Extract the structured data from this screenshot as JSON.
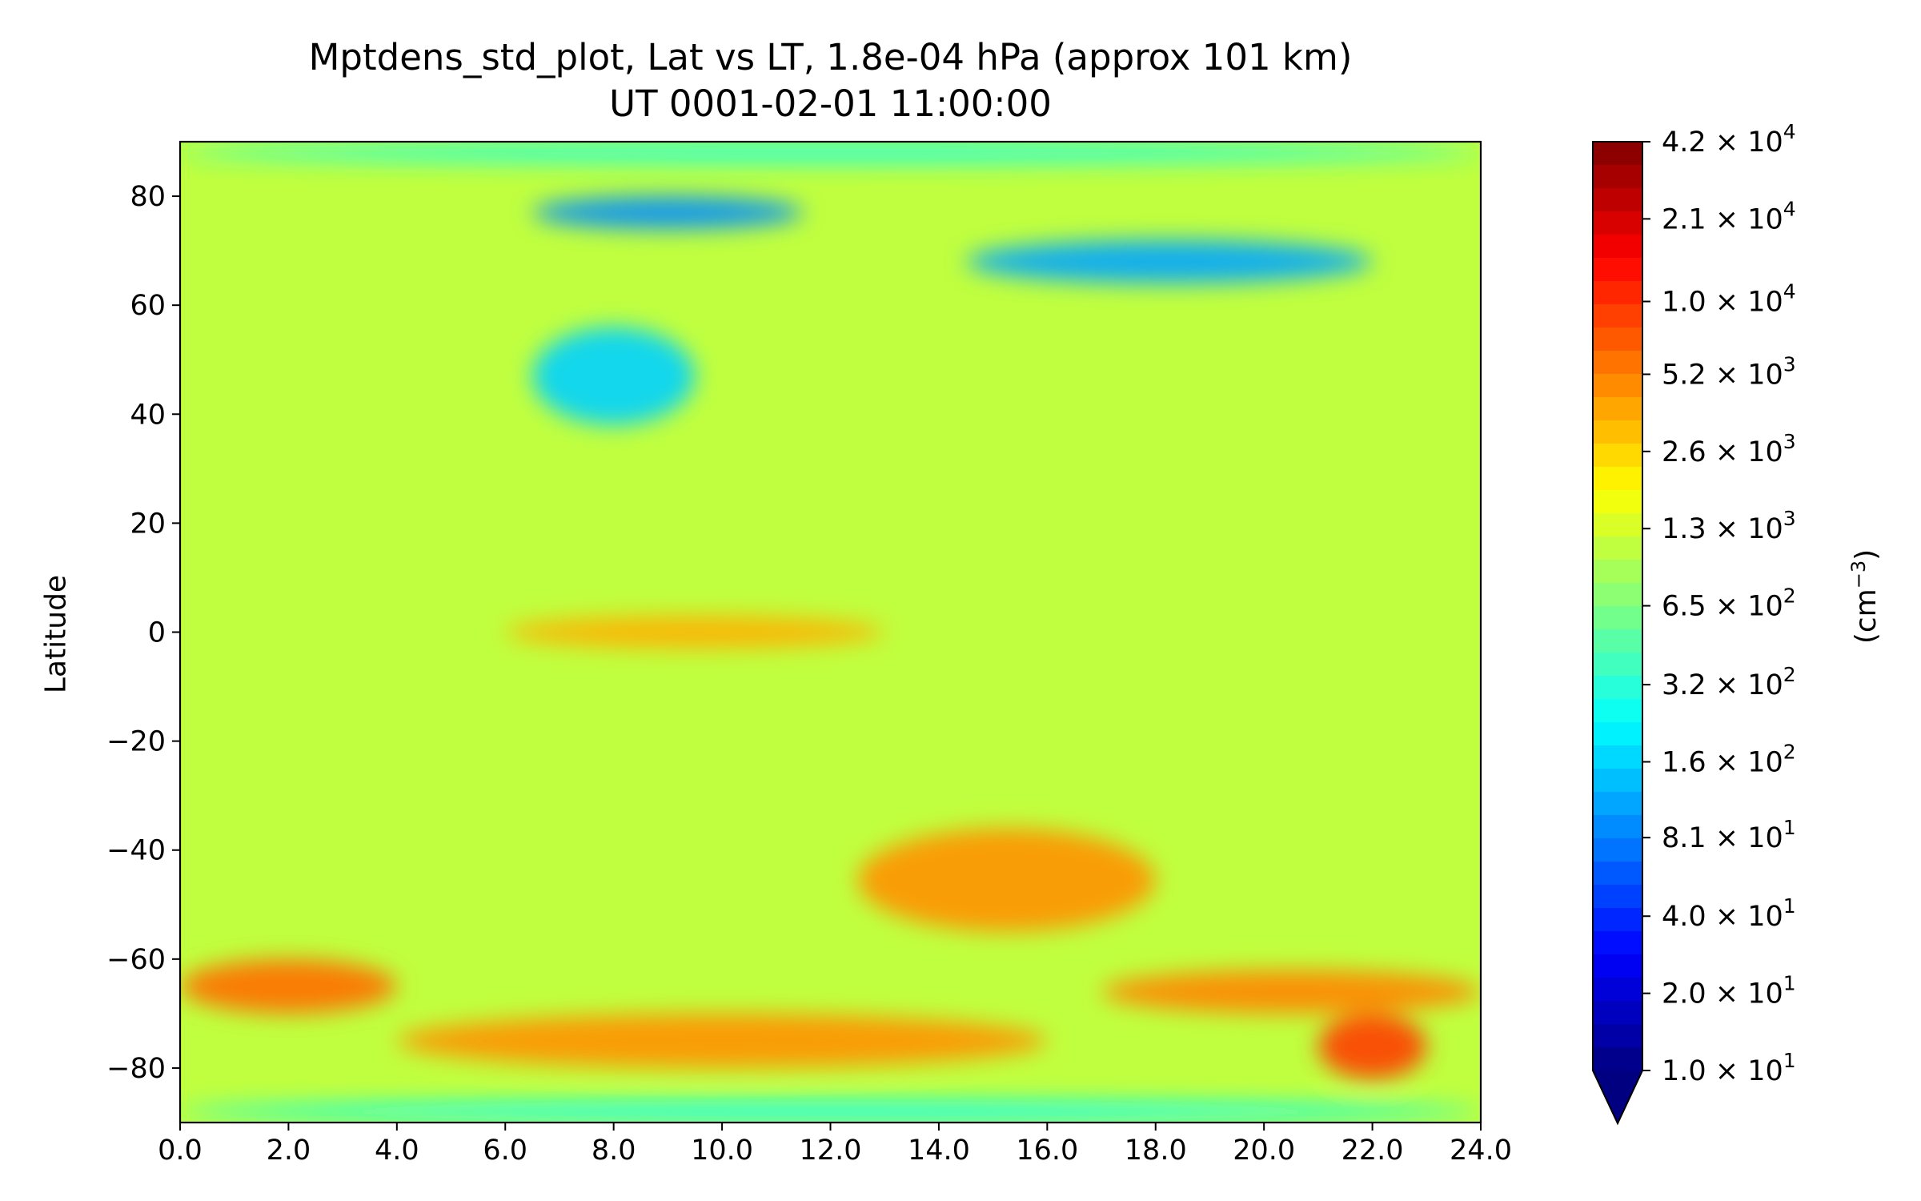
{
  "chart_data": {
    "type": "heatmap",
    "title": "Mptdens_std_plot, Lat vs LT, 1.8e-04 hPa (approx 101 km)",
    "subtitle": "UT 0001-02-01 11:00:00",
    "xlabel": "",
    "ylabel": "Latitude",
    "xlim": [
      0,
      24
    ],
    "ylim": [
      -90,
      90
    ],
    "x_ticks": [
      "0.0",
      "2.0",
      "4.0",
      "6.0",
      "8.0",
      "10.0",
      "12.0",
      "14.0",
      "16.0",
      "18.0",
      "20.0",
      "22.0",
      "24.0"
    ],
    "y_ticks": [
      "80",
      "60",
      "40",
      "20",
      "0",
      "−20",
      "−40",
      "−60",
      "−80"
    ],
    "colormap": "jet",
    "color_scale": "log",
    "colorbar": {
      "label_base": "(cm",
      "label_exp": "−3",
      "label_close": ")",
      "min": 10,
      "max": 42000,
      "extend": "min",
      "ticks": [
        {
          "value": 42000,
          "mantissa": "4.2",
          "exp": "4"
        },
        {
          "value": 21000,
          "mantissa": "2.1",
          "exp": "4"
        },
        {
          "value": 10000,
          "mantissa": "1.0",
          "exp": "4"
        },
        {
          "value": 5200,
          "mantissa": "5.2",
          "exp": "3"
        },
        {
          "value": 2600,
          "mantissa": "2.6",
          "exp": "3"
        },
        {
          "value": 1300,
          "mantissa": "1.3",
          "exp": "3"
        },
        {
          "value": 650,
          "mantissa": "6.5",
          "exp": "2"
        },
        {
          "value": 320,
          "mantissa": "3.2",
          "exp": "2"
        },
        {
          "value": 160,
          "mantissa": "1.6",
          "exp": "2"
        },
        {
          "value": 81,
          "mantissa": "8.1",
          "exp": "1"
        },
        {
          "value": 40,
          "mantissa": "4.0",
          "exp": "1"
        },
        {
          "value": 20,
          "mantissa": "2.0",
          "exp": "1"
        },
        {
          "value": 10,
          "mantissa": "1.0",
          "exp": "1"
        }
      ]
    },
    "features": [
      {
        "lt": [
          6.5,
          11.5
        ],
        "lat": [
          74,
          80
        ],
        "value": 90
      },
      {
        "lt": [
          14.5,
          22
        ],
        "lat": [
          64,
          72
        ],
        "value": 110
      },
      {
        "lt": [
          6.5,
          9.5
        ],
        "lat": [
          38,
          56
        ],
        "value": 160
      },
      {
        "lt": [
          12.5,
          18
        ],
        "lat": [
          -55,
          -36
        ],
        "value": 4500
      },
      {
        "lt": [
          0,
          4
        ],
        "lat": [
          -70,
          -60
        ],
        "value": 6000
      },
      {
        "lt": [
          4,
          16
        ],
        "lat": [
          -80,
          -70
        ],
        "value": 4500
      },
      {
        "lt": [
          17,
          24
        ],
        "lat": [
          -70,
          -62
        ],
        "value": 5000
      },
      {
        "lt": [
          21,
          23
        ],
        "lat": [
          -82,
          -70
        ],
        "value": 9000
      },
      {
        "lt": [
          6,
          13
        ],
        "lat": [
          -3,
          3
        ],
        "value": 3500
      },
      {
        "lt": [
          0,
          24
        ],
        "lat": [
          -90,
          -86
        ],
        "value": 250
      },
      {
        "lt": [
          0,
          24
        ],
        "lat": [
          86,
          90
        ],
        "value": 300
      }
    ]
  }
}
